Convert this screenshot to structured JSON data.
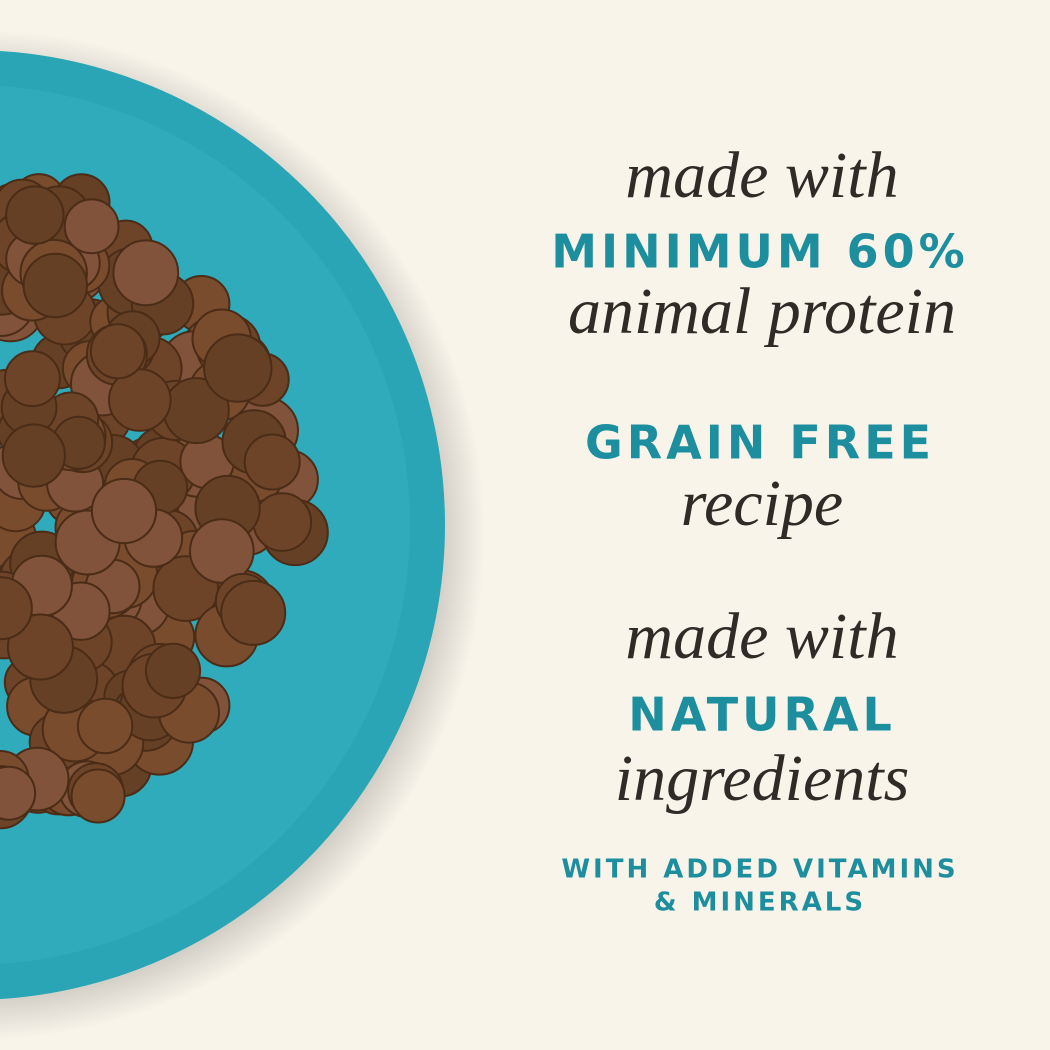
{
  "claims": [
    {
      "lines": [
        "made with",
        "MINIMUM 60%",
        "animal protein"
      ]
    },
    {
      "lines": [
        "GRAIN FREE",
        "recipe"
      ]
    },
    {
      "lines": [
        "made with",
        "NATURAL",
        "ingredients"
      ]
    }
  ],
  "note": {
    "lines": [
      "WITH ADDED VITAMINS",
      "& MINERALS"
    ]
  }
}
